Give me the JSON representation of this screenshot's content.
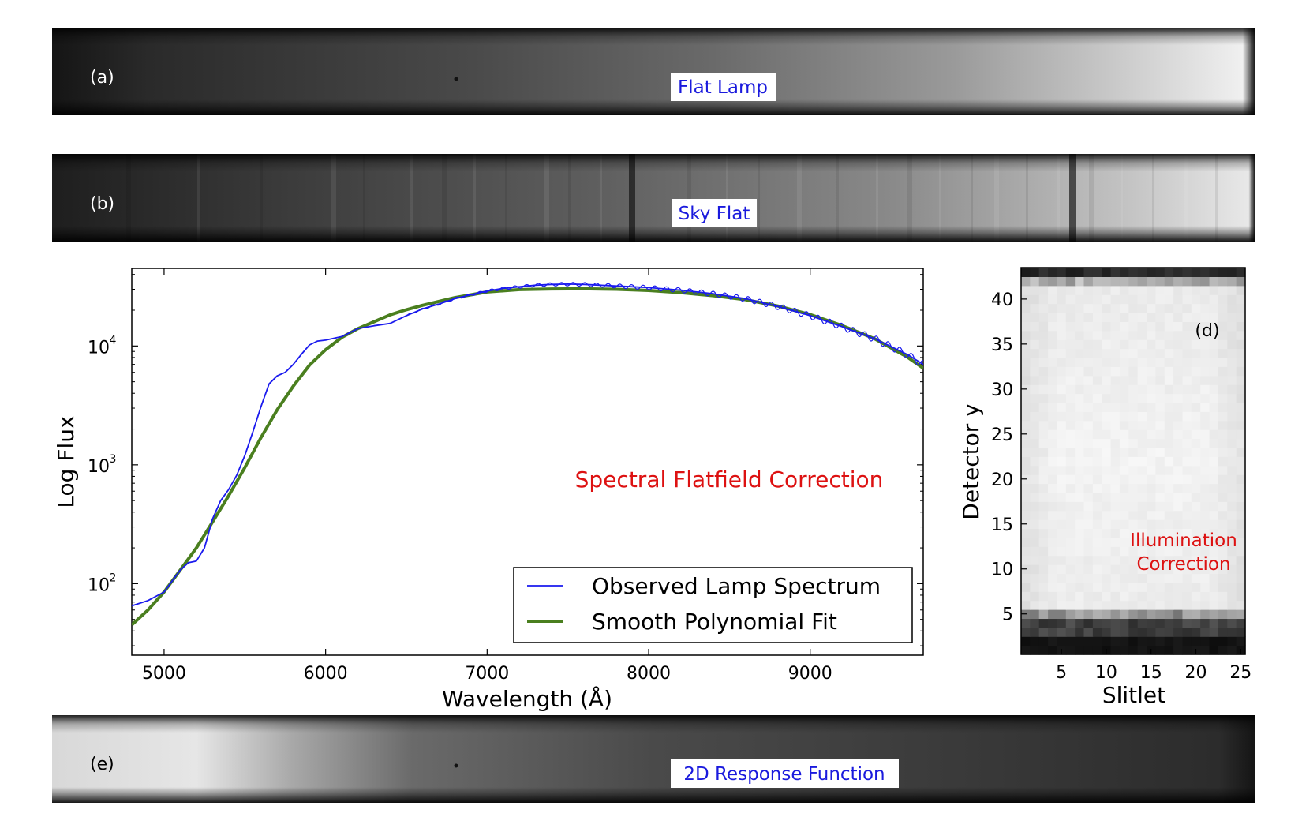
{
  "panels": {
    "a": {
      "tag": "(a)",
      "label": "Flat Lamp"
    },
    "b": {
      "tag": "(b)",
      "label": "Sky Flat"
    },
    "e": {
      "tag": "(e)",
      "label": "2D Response Function"
    }
  },
  "colors": {
    "observed": "#1a1aee",
    "fit": "#4a7f1f",
    "annotation": "#dd1111",
    "panel_label": "#1a1add"
  },
  "chart_data": [
    {
      "id": "c",
      "type": "line",
      "title": "",
      "annotation": "Spectral Flatfield Correction",
      "xlabel": "Wavelength (Å)",
      "ylabel": "Log Flux",
      "xlim": [
        4800,
        9700
      ],
      "ylim": [
        25,
        45000
      ],
      "yscale": "log",
      "xticks": [
        "5000",
        "6000",
        "7000",
        "8000",
        "9000"
      ],
      "yticks": [
        {
          "base": "10",
          "exp": "2",
          "value": 100
        },
        {
          "base": "10",
          "exp": "3",
          "value": 1000
        },
        {
          "base": "10",
          "exp": "4",
          "value": 10000
        }
      ],
      "legend_position": "lower-right",
      "series": [
        {
          "name": "Observed Lamp Spectrum",
          "style": "thin",
          "x": [
            4800,
            4900,
            5000,
            5100,
            5150,
            5200,
            5250,
            5300,
            5350,
            5400,
            5450,
            5500,
            5550,
            5600,
            5650,
            5700,
            5750,
            5800,
            5850,
            5900,
            5950,
            6000,
            6100,
            6200,
            6300,
            6400,
            6500,
            6600,
            6700,
            6800,
            6900,
            7000,
            7100,
            7200,
            7300,
            7400,
            7500,
            7600,
            7700,
            7800,
            7900,
            8000,
            8200,
            8400,
            8600,
            8800,
            9000,
            9200,
            9400,
            9600,
            9700
          ],
          "y": [
            65,
            72,
            85,
            130,
            150,
            155,
            200,
            350,
            500,
            620,
            820,
            1200,
            1900,
            3100,
            4800,
            5600,
            6000,
            7000,
            8500,
            10200,
            11000,
            11200,
            12000,
            14000,
            14800,
            15500,
            18000,
            20500,
            22500,
            25000,
            27000,
            29000,
            30500,
            31500,
            32500,
            33000,
            33200,
            33000,
            32500,
            32000,
            31500,
            31000,
            29500,
            27500,
            25000,
            21500,
            18000,
            14500,
            11500,
            8500,
            7000
          ]
        },
        {
          "name": "Smooth Polynomial Fit",
          "style": "thick",
          "x": [
            4800,
            4900,
            5000,
            5100,
            5200,
            5300,
            5400,
            5500,
            5600,
            5700,
            5800,
            5900,
            6000,
            6100,
            6200,
            6300,
            6400,
            6500,
            6600,
            6800,
            7000,
            7200,
            7400,
            7600,
            7800,
            8000,
            8200,
            8400,
            8600,
            8800,
            9000,
            9200,
            9400,
            9600,
            9700
          ],
          "y": [
            45,
            60,
            85,
            130,
            200,
            330,
            550,
            950,
            1700,
            2900,
            4600,
            6900,
            9300,
            11800,
            14000,
            16000,
            18300,
            20200,
            22000,
            25500,
            28500,
            29800,
            30200,
            30300,
            30000,
            29300,
            28100,
            26500,
            24500,
            21700,
            18400,
            14800,
            11500,
            8100,
            6500
          ]
        }
      ]
    },
    {
      "id": "d",
      "type": "heatmap",
      "tag": "(d)",
      "annotation": [
        "Illumination",
        "Correction"
      ],
      "xlabel": "Slitlet",
      "ylabel": "Detector y",
      "xlim": [
        0.5,
        25.5
      ],
      "ylim": [
        0.5,
        43.5
      ],
      "xticks": [
        "5",
        "10",
        "15",
        "20",
        "25"
      ],
      "yticks": [
        "5",
        "10",
        "15",
        "20",
        "25",
        "30",
        "35",
        "40"
      ],
      "grid": false
    }
  ]
}
